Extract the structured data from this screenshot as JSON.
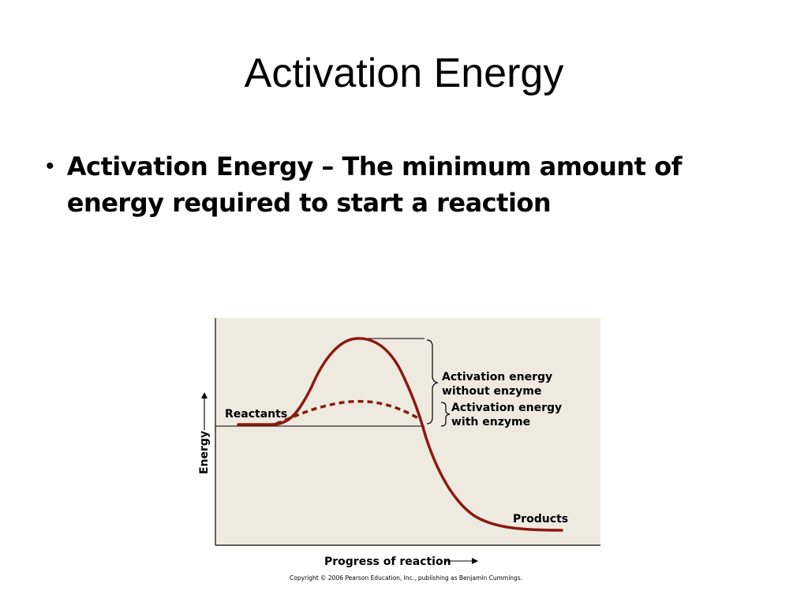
{
  "slide": {
    "title": "Activation Energy",
    "bullet": "Activation Energy – The minimum amount of energy required to start a reaction"
  },
  "diagram": {
    "y_axis_label": "Energy",
    "x_axis_label": "Progress of reaction",
    "reactants_label": "Reactants",
    "products_label": "Products",
    "without_enzyme_label_1": "Activation energy",
    "without_enzyme_label_2": "without enzyme",
    "with_enzyme_label_1": "Activation energy",
    "with_enzyme_label_2": "with enzyme",
    "copyright": "Copyright © 2006 Pearson Education, Inc., publishing as Benjamin Cummings.",
    "colors": {
      "panel": "#eeeae0",
      "curve": "#8b1a10",
      "axis": "#000000"
    }
  }
}
